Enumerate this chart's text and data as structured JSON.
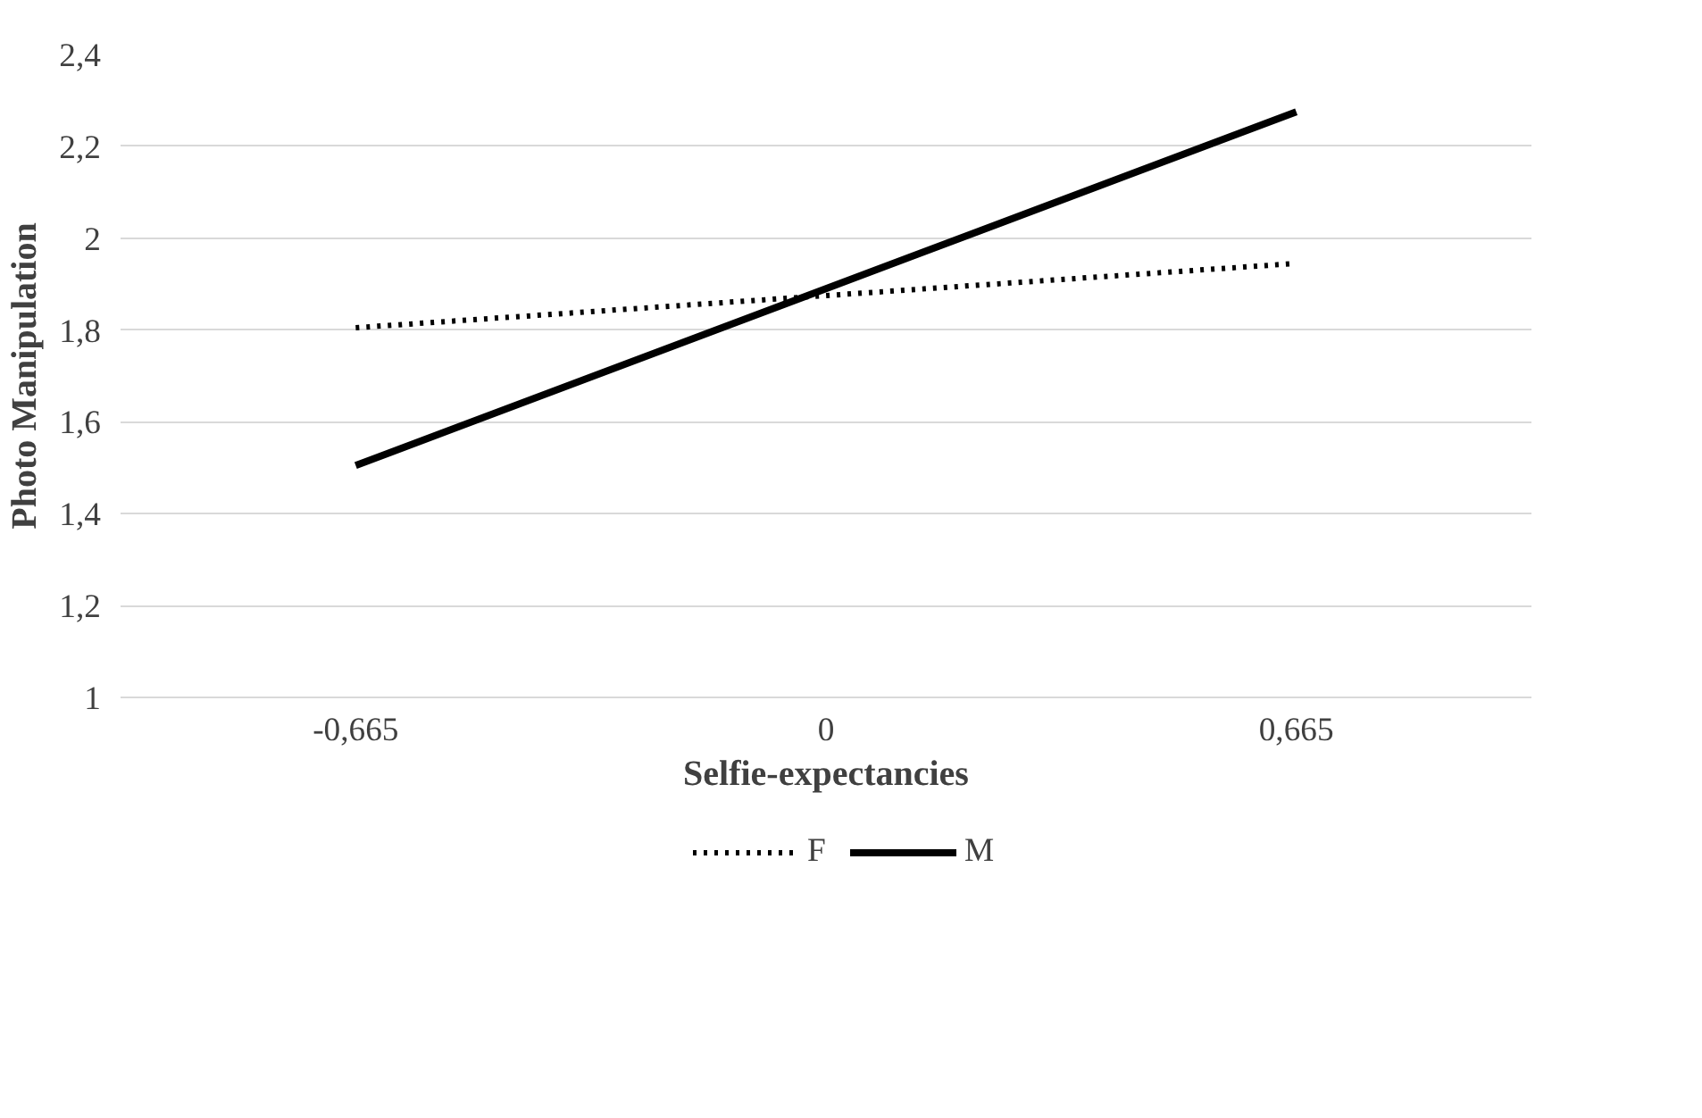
{
  "chart_data": {
    "type": "line",
    "xlabel": "Selfie-expectancies",
    "ylabel": "Photo Manipulation",
    "categories": [
      "-0,665",
      "0",
      "0,665"
    ],
    "series": [
      {
        "name": "F",
        "color": "#000000",
        "values": [
          1.805,
          1.875,
          1.945
        ],
        "line_style": "dotted"
      },
      {
        "name": "M",
        "color": "#000000",
        "values": [
          1.505,
          1.89,
          2.275
        ],
        "line_style": "solid"
      }
    ],
    "ylim": [
      1,
      2.4
    ],
    "yticks": [
      1,
      {
        "value": 1.2,
        "label": "1,2"
      },
      {
        "value": 1.4,
        "label": "1,4"
      },
      {
        "value": 1.6,
        "label": "1,6"
      },
      {
        "value": 1.8,
        "label": "1,8"
      },
      2,
      {
        "value": 2.2,
        "label": "2,2"
      },
      {
        "value": 2.4,
        "label": "2,4"
      }
    ],
    "grid": "y",
    "legend": "bottom",
    "marker": "none"
  }
}
